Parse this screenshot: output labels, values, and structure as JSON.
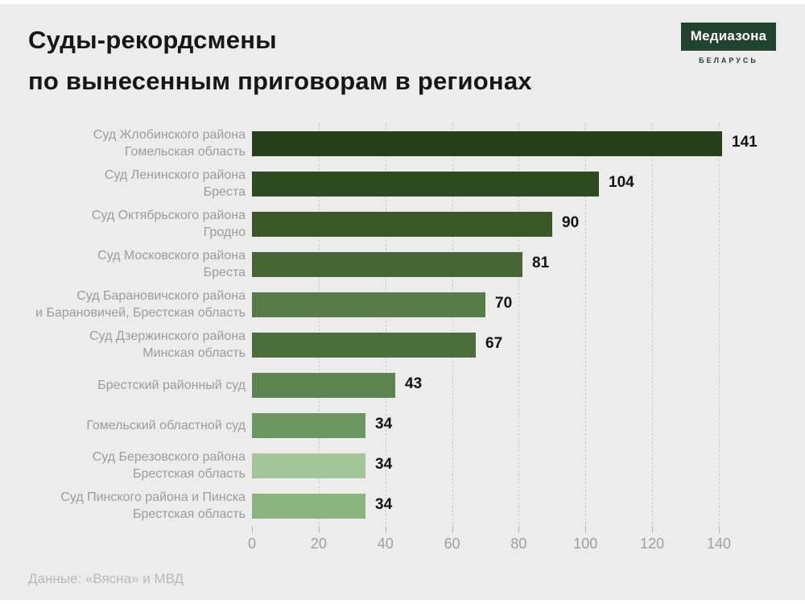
{
  "page": {
    "background": "#ebeceb"
  },
  "header": {
    "title_line1": "Суды-рекордсмены",
    "title_line2": "по вынесенным приговорам в регионах",
    "logo": {
      "name": "Медиазона",
      "sub": "БЕЛАРУСЬ",
      "box_color": "#20422f",
      "text_color": "#ffffff"
    }
  },
  "chart_data": {
    "type": "bar",
    "orientation": "horizontal",
    "title": "Суды-рекордсмены по вынесенным приговорам в регионах",
    "xlabel": "",
    "ylabel": "",
    "xlim": [
      0,
      156
    ],
    "xticks": [
      0,
      20,
      40,
      60,
      80,
      100,
      120,
      140
    ],
    "grid": "dashed-vertical",
    "rows": [
      {
        "court": "Суд Жлобинского района",
        "region": "Гомельская область",
        "value": 141,
        "color": "#27401c"
      },
      {
        "court": "Суд Ленинского района",
        "region": "Бреста",
        "value": 104,
        "color": "#2d4a21"
      },
      {
        "court": "Суд Октябрьского района",
        "region": "Гродно",
        "value": 90,
        "color": "#3a5728"
      },
      {
        "court": "Суд Московского района",
        "region": "Бреста",
        "value": 81,
        "color": "#476635"
      },
      {
        "court": "Суд Барановичского района",
        "region": "и Барановичей, Брестская область",
        "value": 70,
        "color": "#587c48"
      },
      {
        "court": "Суд Дзержинского района",
        "region": "Минская область",
        "value": 67,
        "color": "#4c6e3c"
      },
      {
        "court": "Брестский районный суд",
        "region": "",
        "value": 43,
        "color": "#5d8450"
      },
      {
        "court": "Гомельский областной суд",
        "region": "",
        "value": 34,
        "color": "#6d9762"
      },
      {
        "court": "Суд Березовского района",
        "region": "Брестская область",
        "value": 34,
        "color": "#a5c69b"
      },
      {
        "court": "Суд Пинского района и Пинска",
        "region": "Брестская область",
        "value": 34,
        "color": "#8bb37f"
      }
    ]
  },
  "footer": {
    "source": "Данные: «Вясна» и МВД"
  }
}
